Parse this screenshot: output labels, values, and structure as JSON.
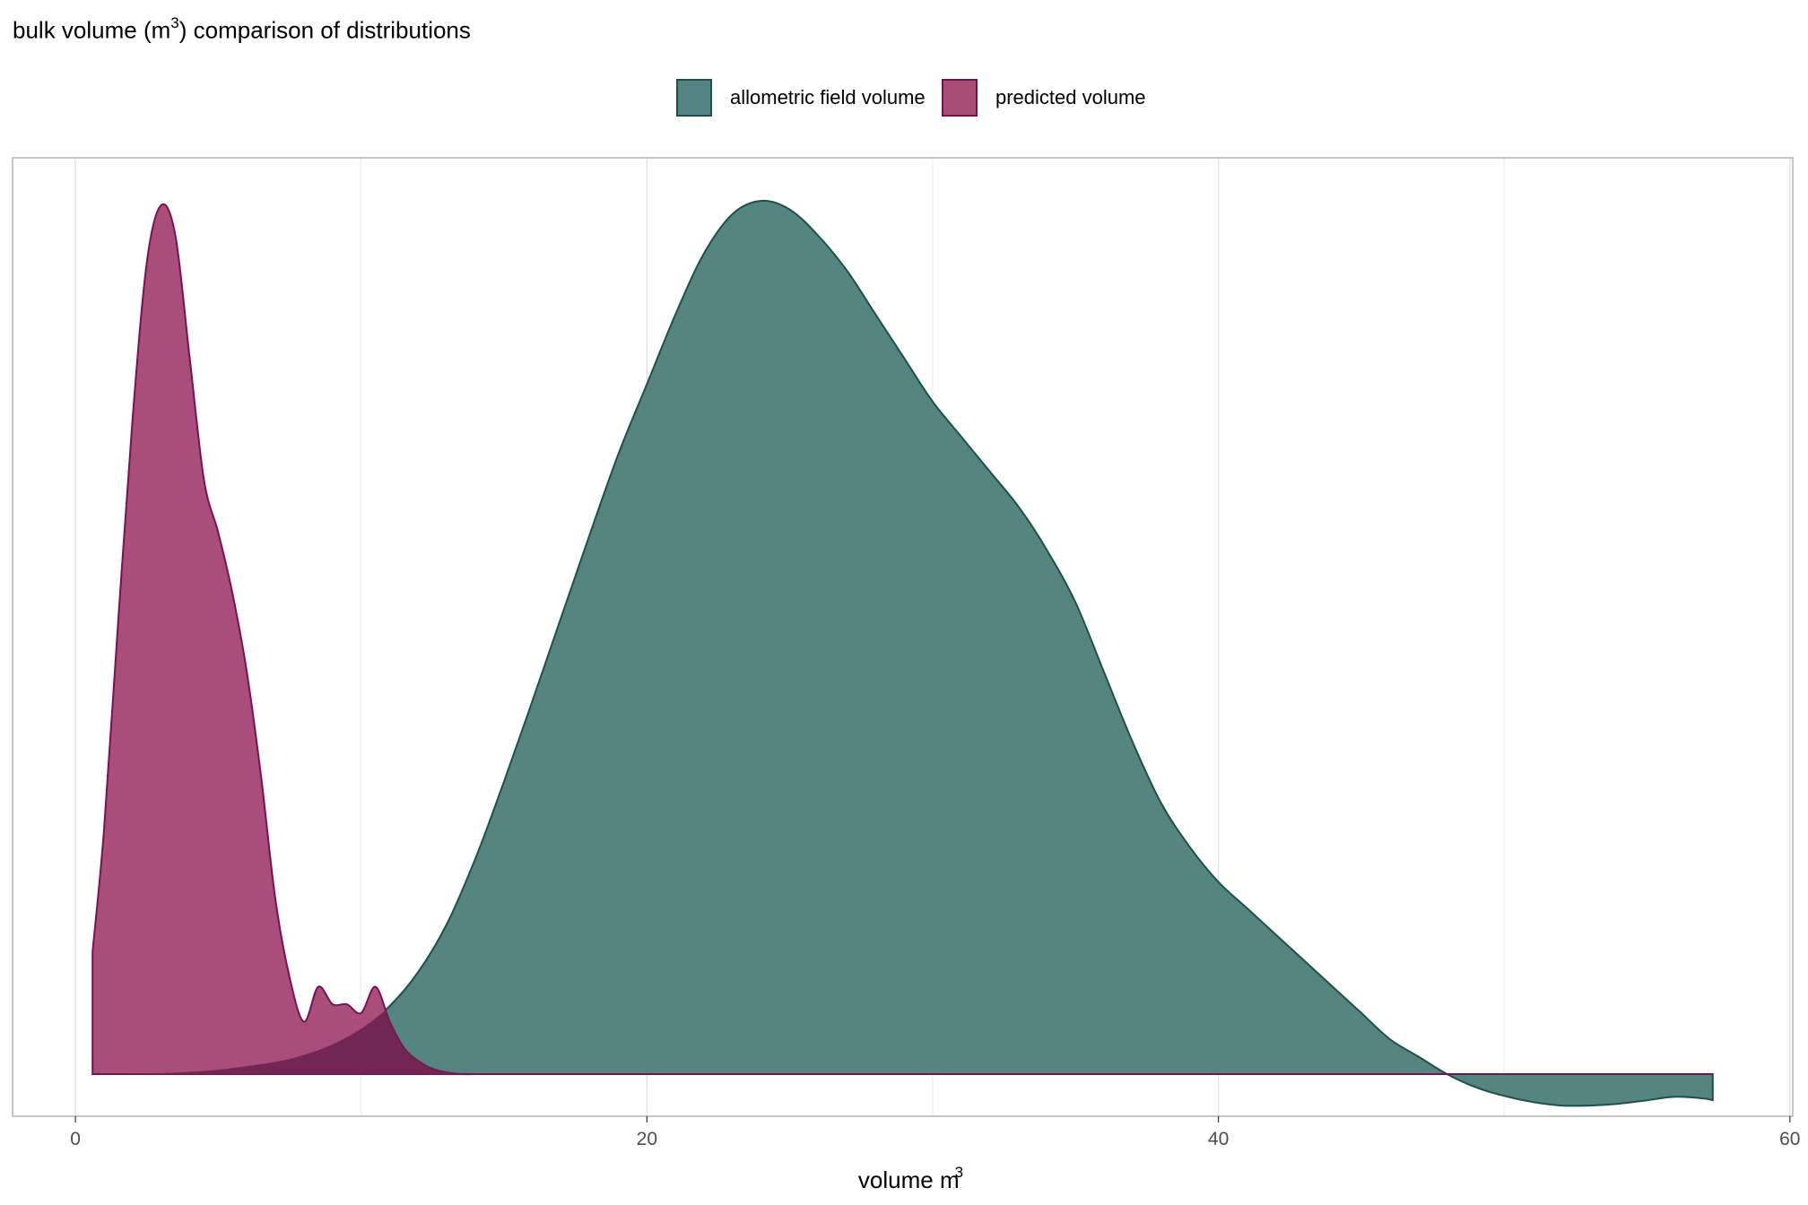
{
  "colors": {
    "field_fill": "#538380",
    "field_line": "#1e4f4c",
    "pred_fill": "#a84c78",
    "pred_line": "#7a1052",
    "grid": "#e5e5e5",
    "panel_border": "#b3b3b3"
  },
  "chart_data": {
    "type": "area",
    "title": "bulk volume (m3) comparison of distributions",
    "title_main": "bulk volume (m",
    "title_sup": "3",
    "title_tail": ") comparison of distributions",
    "xlabel": "volume m3",
    "xlabel_main": "volume m",
    "xlabel_sup": "3",
    "ylabel": "",
    "xlim": [
      -2.2,
      60.1
    ],
    "ylim": [
      0,
      1.05
    ],
    "x_ticks": [
      0,
      20,
      40,
      60
    ],
    "x_tick_labels": [
      "0",
      "20",
      "40",
      "60"
    ],
    "y_ticks_shown": false,
    "grid": "vertical",
    "legend_position": "top",
    "series": [
      {
        "name": "allometric field volume",
        "fill": "#538380",
        "stroke": "#1e4f4c",
        "x": [
          0.6,
          3,
          5,
          7,
          8,
          9,
          10,
          11,
          12,
          13,
          14,
          15,
          16,
          17,
          18,
          19,
          20,
          21,
          22,
          23,
          24,
          25,
          26,
          27,
          28,
          29,
          30,
          31,
          32,
          33,
          34,
          35,
          36,
          37,
          38,
          39,
          40,
          41,
          42,
          43,
          44,
          45,
          46,
          47,
          48,
          49,
          50,
          51,
          52,
          53,
          54,
          55,
          56,
          57,
          57.3
        ],
        "y": [
          0.0,
          0.001,
          0.005,
          0.014,
          0.022,
          0.034,
          0.052,
          0.078,
          0.117,
          0.172,
          0.247,
          0.335,
          0.428,
          0.523,
          0.618,
          0.71,
          0.79,
          0.87,
          0.94,
          0.985,
          1.0,
          0.99,
          0.96,
          0.92,
          0.87,
          0.82,
          0.77,
          0.73,
          0.69,
          0.65,
          0.6,
          0.54,
          0.46,
          0.38,
          0.31,
          0.26,
          0.22,
          0.19,
          0.16,
          0.13,
          0.1,
          0.07,
          0.04,
          0.02,
          0.0,
          -0.015,
          -0.025,
          -0.032,
          -0.036,
          -0.036,
          -0.034,
          -0.03,
          -0.026,
          -0.028,
          -0.03
        ]
      },
      {
        "name": "predicted volume",
        "fill": "#a84c78",
        "stroke": "#7a1052",
        "x": [
          0.6,
          1,
          1.5,
          2,
          2.5,
          3,
          3.5,
          4,
          4.5,
          5,
          5.5,
          6,
          6.5,
          7,
          7.5,
          8,
          8.5,
          9,
          9.5,
          10,
          10.5,
          11,
          11.5,
          12,
          12.5,
          13,
          13.5,
          14,
          15,
          57.3
        ],
        "y": [
          0.14,
          0.28,
          0.52,
          0.75,
          0.93,
          0.995,
          0.96,
          0.82,
          0.68,
          0.62,
          0.55,
          0.46,
          0.34,
          0.2,
          0.11,
          0.06,
          0.1,
          0.08,
          0.08,
          0.07,
          0.1,
          0.06,
          0.03,
          0.015,
          0.006,
          0.002,
          0.0,
          0.0,
          0.0,
          0.0
        ]
      }
    ]
  }
}
